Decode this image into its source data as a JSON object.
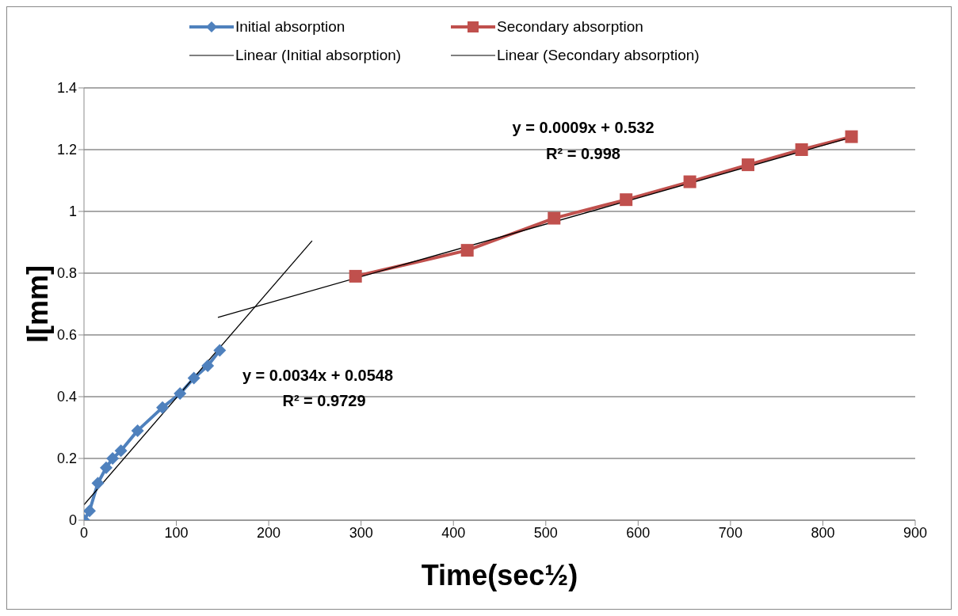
{
  "chart_data": {
    "type": "line",
    "xlabel": "Time(sec½)",
    "ylabel": "I[mm]",
    "xlim": [
      0,
      900
    ],
    "xticks": [
      0,
      100,
      200,
      300,
      400,
      500,
      600,
      700,
      800,
      900
    ],
    "ylim": [
      0,
      1.4
    ],
    "yticks": [
      0,
      0.2,
      0.4,
      0.6,
      0.8,
      1,
      1.2,
      1.4
    ],
    "grid": "y",
    "legend": "top",
    "line_style": "solid",
    "series": [
      {
        "name": "Initial absorption",
        "color": "#4f81bd",
        "marker": "diamond",
        "x": [
          0,
          6,
          15,
          24,
          31,
          40,
          58,
          85,
          104,
          119,
          134,
          147
        ],
        "values": [
          0,
          0.03,
          0.12,
          0.17,
          0.2,
          0.225,
          0.29,
          0.365,
          0.41,
          0.46,
          0.5,
          0.55
        ]
      },
      {
        "name": "Secondary absorption",
        "color": "#c0504d",
        "marker": "square",
        "x": [
          294,
          415,
          509,
          587,
          656,
          719,
          777,
          831
        ],
        "values": [
          0.79,
          0.874,
          0.978,
          1.038,
          1.096,
          1.151,
          1.2,
          1.242
        ]
      },
      {
        "name": "Linear (Initial absorption)",
        "color": "#000000",
        "marker": "none",
        "x": [
          0,
          247
        ],
        "values": [
          0.05,
          0.905
        ]
      },
      {
        "name": "Linear (Secondary absorption)",
        "color": "#000000",
        "marker": "none",
        "x": [
          145,
          831
        ],
        "values": [
          0.657,
          1.24
        ]
      }
    ],
    "annotations": [
      "y = 0.0034x + 0.0548",
      "R² = 0.9729",
      "y = 0.0009x + 0.532",
      "R² = 0.998"
    ]
  }
}
